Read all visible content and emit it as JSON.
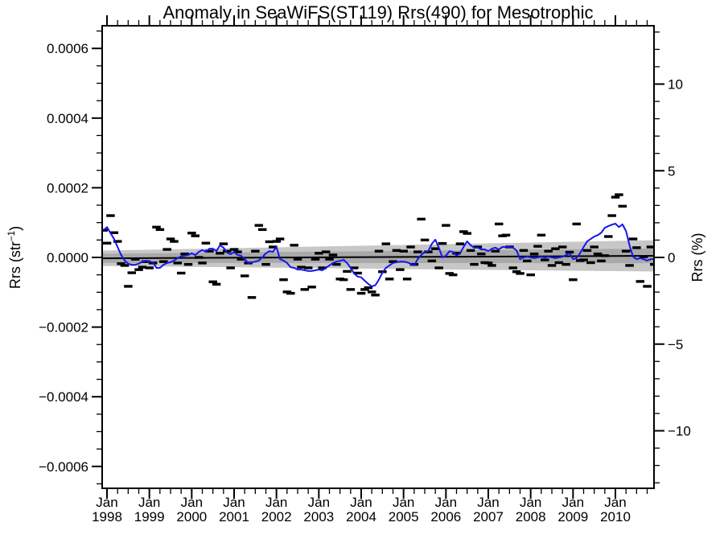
{
  "title": "Anomaly in SeaWiFS(ST119) Rrs(490) for Mesotrophic",
  "left_axis": {
    "label_pre": "Rrs (str",
    "label_sup": "−1",
    "label_post": ")"
  },
  "right_axis": {
    "label": "Rrs (%)"
  },
  "chart_data": {
    "type": "line",
    "title": "Anomaly in SeaWiFS(ST119) Rrs(490) for Mesotrophic",
    "xlabel": "",
    "ylabel_left": "Rrs (str^-1)",
    "ylabel_right": "Rrs (%)",
    "grid": false,
    "legend": false,
    "x_domain_months_from_jan1998": [
      -1.4,
      154.9
    ],
    "ylim_left": [
      -0.000665,
      0.000665
    ],
    "ylim_right_percent": [
      -13.35,
      13.35
    ],
    "unit_scale": 0.0001,
    "x_ticks": [
      {
        "m": 0,
        "month": "Jan",
        "year": "1998"
      },
      {
        "m": 12,
        "month": "Jan",
        "year": "1999"
      },
      {
        "m": 24,
        "month": "Jan",
        "year": "2000"
      },
      {
        "m": 36,
        "month": "Jan",
        "year": "2001"
      },
      {
        "m": 48,
        "month": "Jan",
        "year": "2002"
      },
      {
        "m": 60,
        "month": "Jan",
        "year": "2003"
      },
      {
        "m": 72,
        "month": "Jan",
        "year": "2004"
      },
      {
        "m": 84,
        "month": "Jan",
        "year": "2005"
      },
      {
        "m": 96,
        "month": "Jan",
        "year": "2006"
      },
      {
        "m": 108,
        "month": "Jan",
        "year": "2007"
      },
      {
        "m": 120,
        "month": "Jan",
        "year": "2008"
      },
      {
        "m": 132,
        "month": "Jan",
        "year": "2009"
      },
      {
        "m": 144,
        "month": "Jan",
        "year": "2010"
      }
    ],
    "x_minor_step_months": 3,
    "y_left_ticks": [
      {
        "v": 0.0006,
        "label": "0.0006"
      },
      {
        "v": 0.0004,
        "label": "0.0004"
      },
      {
        "v": 0.0002,
        "label": "0.0002"
      },
      {
        "v": 0.0,
        "label": "0.0000"
      },
      {
        "v": -0.0002,
        "label": "−0.0002"
      },
      {
        "v": -0.0004,
        "label": "−0.0004"
      },
      {
        "v": -0.0006,
        "label": "−0.0006"
      }
    ],
    "y_left_minor_step": 5e-05,
    "y_right_ticks": [
      {
        "p": 10,
        "label": "10"
      },
      {
        "p": 5,
        "label": "5"
      },
      {
        "p": 0,
        "label": "0"
      },
      {
        "p": -5,
        "label": "−5"
      },
      {
        "p": -10,
        "label": "−10"
      }
    ],
    "y_right_minor_step_percent": 1,
    "colors": {
      "frame": "#000000",
      "marker": "#000000",
      "smoothed_line": "#1515ee",
      "trend_line": "#000000",
      "band_outer": "#c7c7c7",
      "band_inner": "#a9a9a9"
    },
    "trend": {
      "start_month": -1.4,
      "end_month": 155,
      "start_value": -0.025,
      "end_value": 0.045
    },
    "bands": {
      "outer": {
        "half_width_start": 0.22,
        "half_width_end": 0.45
      },
      "inner": {
        "half_width_start": 0.13,
        "half_width_end": 0.21
      }
    },
    "series": [
      {
        "name": "monthly-anomaly-markers",
        "style": "dash_markers",
        "start_month": -1,
        "values": [
          0.78,
          0.41,
          1.2,
          0.71,
          0.46,
          -0.18,
          -0.23,
          -0.83,
          -0.44,
          -0.05,
          -0.35,
          -0.28,
          -0.12,
          -0.3,
          -0.16,
          0.87,
          0.8,
          -0.12,
          0.23,
          0.53,
          0.46,
          -0.16,
          -0.45,
          0.1,
          -0.2,
          0.7,
          0.62,
          0,
          -0.16,
          0.41,
          0.18,
          -0.7,
          -0.77,
          0.12,
          0.39,
          0.18,
          -0.3,
          0.23,
          0.16,
          -0.05,
          -0.53,
          -0.16,
          -1.15,
          0.18,
          0.92,
          0.8,
          -0.2,
          0.45,
          0.3,
          0.46,
          0.53,
          -0.64,
          -0.99,
          -1.03,
          0.35,
          -0.05,
          -0.28,
          -0.92,
          -0.3,
          -0.85,
          -0.05,
          0.12,
          -0.3,
          0.16,
          -0.05,
          0.07,
          -0.2,
          -0.62,
          -0.64,
          -0.4,
          -0.92,
          -0.3,
          -0.45,
          -1.03,
          -0.92,
          -0.87,
          -0.99,
          -1.08,
          0.18,
          -0.41,
          0.39,
          -0.62,
          -0.12,
          0.2,
          -0.35,
          0.18,
          -0.62,
          0.3,
          -0.2,
          0.16,
          1.1,
          0.5,
          0.16,
          -0.1,
          0.25,
          -0.3,
          0.4,
          0.92,
          -0.46,
          -0.5,
          0.12,
          0.39,
          0.74,
          0.69,
          0.2,
          -0.2,
          0.3,
          0.1,
          -0.15,
          -0.16,
          -0.23,
          0.18,
          0.96,
          0.62,
          0.64,
          0.3,
          -0.3,
          -0.41,
          -0.46,
          0.2,
          -0.1,
          -0.5,
          0.1,
          0.32,
          0.64,
          -0.07,
          0.18,
          -0.23,
          0.25,
          -0.15,
          0.3,
          -0.2,
          0.15,
          -0.64,
          0.96,
          -0.09,
          -0.07,
          0.2,
          -0.15,
          0.3,
          0.1,
          -0.1,
          0.05,
          0.6,
          1.2,
          1.73,
          1.8,
          1.47,
          0.18,
          -0.23,
          0.53,
          0.28,
          -0.69,
          0.02,
          -0.83,
          0.3,
          -0.2
        ]
      },
      {
        "name": "smoothed-anomaly-line",
        "style": "line",
        "start_month": -1,
        "values": [
          0.78,
          0.87,
          0.7,
          0.53,
          0.3,
          0.07,
          -0.09,
          -0.18,
          -0.21,
          -0.21,
          -0.18,
          -0.12,
          -0.09,
          -0.12,
          -0.14,
          -0.3,
          -0.3,
          -0.21,
          -0.16,
          -0.14,
          -0.09,
          -0.02,
          0.03,
          0.05,
          0.07,
          0.12,
          0.07,
          0.16,
          0.21,
          0.16,
          0.25,
          0.25,
          0.18,
          0.35,
          0.28,
          0.14,
          0.09,
          0.16,
          0.07,
          0.05,
          -0.05,
          -0.16,
          -0.14,
          -0.12,
          -0.09,
          0,
          0.12,
          0.18,
          0.16,
          0.3,
          -0.05,
          -0.09,
          -0.16,
          -0.28,
          -0.3,
          -0.35,
          -0.35,
          -0.37,
          -0.39,
          -0.39,
          -0.37,
          -0.35,
          -0.37,
          -0.3,
          -0.23,
          -0.16,
          -0.12,
          -0.1,
          -0.07,
          -0.16,
          -0.3,
          -0.46,
          -0.55,
          -0.57,
          -0.67,
          -0.76,
          -0.83,
          -0.8,
          -0.64,
          -0.44,
          -0.3,
          -0.23,
          -0.16,
          -0.14,
          -0.12,
          -0.12,
          -0.14,
          -0.18,
          -0.23,
          -0.05,
          0.07,
          0.16,
          0.18,
          0.39,
          0.51,
          0.28,
          0,
          0.05,
          0.18,
          0.16,
          0.05,
          0.12,
          0.3,
          0.46,
          0.35,
          0.28,
          0.28,
          0.23,
          0.23,
          0.18,
          0.25,
          0.28,
          0.23,
          0.3,
          0.3,
          0.3,
          0.28,
          0.2,
          -0.05,
          0,
          0.02,
          0,
          -0.02,
          0,
          0.02,
          0,
          0.02,
          0,
          -0.02,
          0,
          0.02,
          0.07,
          0.12,
          -0.05,
          -0.02,
          0.12,
          0.3,
          0.46,
          0.53,
          0.6,
          0.64,
          0.71,
          0.85,
          0.9,
          0.94,
          0.97,
          0.87,
          0.95,
          0.76,
          0.35,
          0.02,
          -0.05,
          -0.02,
          -0.05,
          -0.09,
          -0.05,
          -0.05
        ]
      }
    ]
  }
}
